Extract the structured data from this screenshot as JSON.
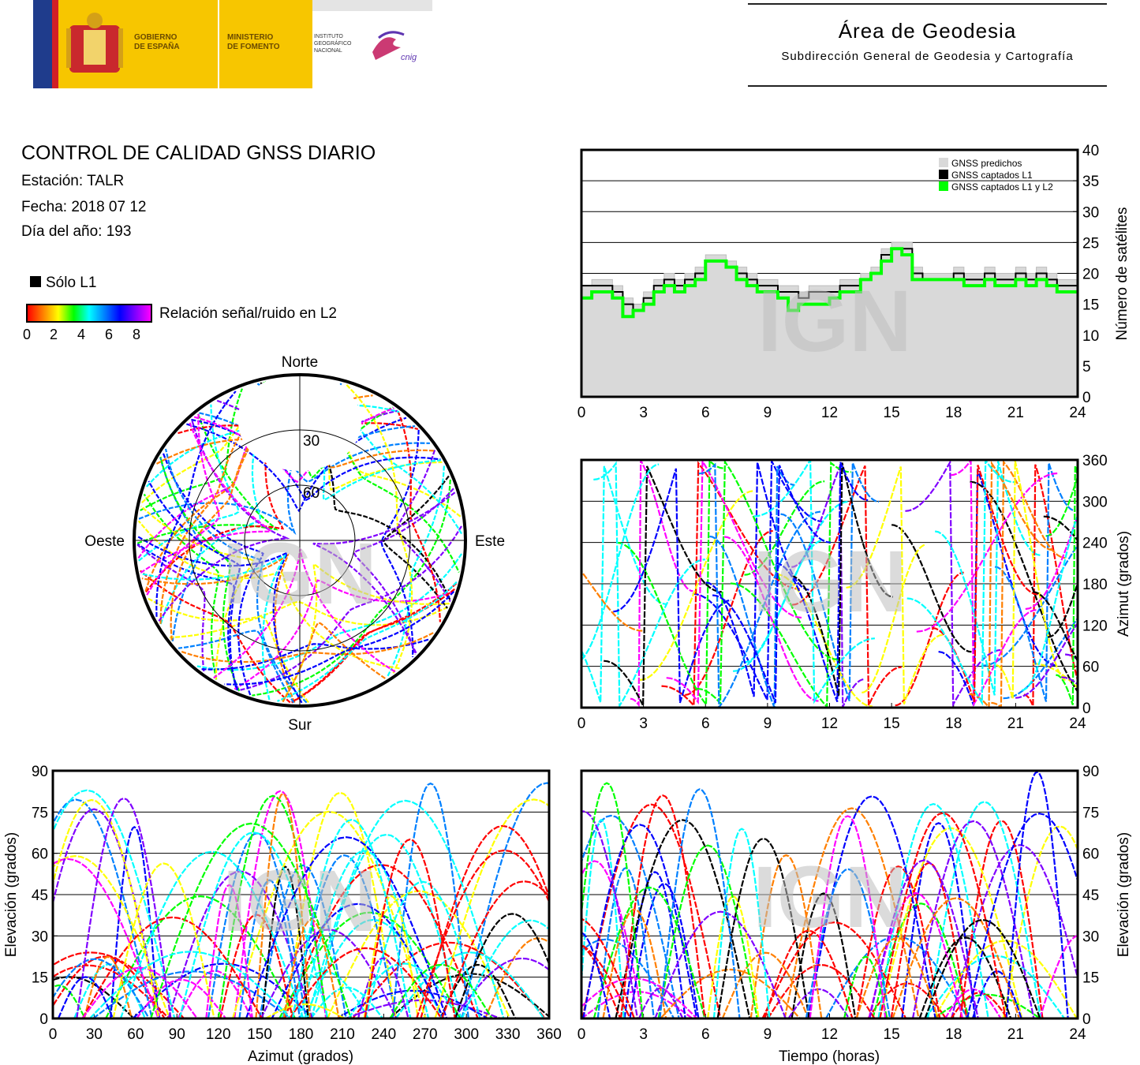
{
  "header": {
    "gov_line1": "GOBIERNO",
    "gov_line2": "DE ESPAÑA",
    "min_line1": "MINISTERIO",
    "min_line2": "DE FOMENTO",
    "ign_line1": "INSTITUTO",
    "ign_line2": "GEOGRÁFICO",
    "ign_line3": "NACIONAL",
    "cnig_logo": "cnig",
    "area_title": "Área de Geodesia",
    "area_subtitle": "Subdirección General de Geodesia y Cartografía"
  },
  "info": {
    "title": "CONTROL DE CALIDAD GNSS DIARIO",
    "station": "Estación: TALR",
    "date": "Fecha: 2018 07 12",
    "doy": "Día del año: 193",
    "legend_l1": "Sólo L1",
    "legend_snr": "Relación señal/ruido en L2",
    "colorbar_ticks": [
      "0",
      "2",
      "4",
      "6",
      "8"
    ]
  },
  "watermark": "IGN",
  "colors": {
    "l1_only": "#000000",
    "predicted": "#d9d9d9",
    "captured_l1l2": "#00ff00",
    "snr_palette": [
      "#ff0000",
      "#ff7f00",
      "#ffff00",
      "#00ff00",
      "#00ffff",
      "#0080ff",
      "#0000ff",
      "#8000ff",
      "#ff00ff"
    ]
  },
  "chart_data": [
    {
      "id": "sat_count",
      "type": "line",
      "ylabel": "Número de satélites",
      "xlabel": "",
      "xlim": [
        0,
        24
      ],
      "ylim": [
        0,
        40
      ],
      "xticks": [
        "0",
        "3",
        "6",
        "9",
        "12",
        "15",
        "18",
        "21",
        "24"
      ],
      "yticks": [
        "0",
        "5",
        "10",
        "15",
        "20",
        "25",
        "30",
        "35",
        "40"
      ],
      "grid": "horizontal",
      "legend_position": "top-right",
      "series": [
        {
          "name": "GNSS predichos",
          "x": [
            0,
            0.5,
            1,
            1.5,
            2,
            2.5,
            3,
            3.5,
            4,
            4.5,
            5,
            5.5,
            6,
            6.5,
            7,
            7.5,
            8,
            8.5,
            9,
            9.5,
            10,
            10.5,
            11,
            11.5,
            12,
            12.5,
            13,
            13.5,
            14,
            14.5,
            15,
            15.5,
            16,
            16.5,
            17,
            17.5,
            18,
            18.5,
            19,
            19.5,
            20,
            20.5,
            21,
            21.5,
            22,
            22.5,
            23,
            23.5,
            24
          ],
          "y": [
            18,
            19,
            19,
            18,
            16,
            15,
            17,
            19,
            20,
            19,
            20,
            21,
            23,
            23,
            22,
            21,
            20,
            19,
            19,
            18,
            18,
            17,
            18,
            18,
            18,
            19,
            19,
            20,
            21,
            24,
            25,
            25,
            21,
            20,
            20,
            20,
            21,
            20,
            20,
            21,
            20,
            20,
            21,
            20,
            21,
            20,
            19,
            19,
            20
          ]
        },
        {
          "name": "GNSS captados L1",
          "x": [
            0,
            0.5,
            1,
            1.5,
            2,
            2.5,
            3,
            3.5,
            4,
            4.5,
            5,
            5.5,
            6,
            6.5,
            7,
            7.5,
            8,
            8.5,
            9,
            9.5,
            10,
            10.5,
            11,
            11.5,
            12,
            12.5,
            13,
            13.5,
            14,
            14.5,
            15,
            15.5,
            16,
            16.5,
            17,
            17.5,
            18,
            18.5,
            19,
            19.5,
            20,
            20.5,
            21,
            21.5,
            22,
            22.5,
            23,
            23.5,
            24
          ],
          "y": [
            18,
            18,
            18,
            17,
            15,
            14,
            16,
            18,
            19,
            18,
            19,
            20,
            22,
            22,
            21,
            20,
            19,
            18,
            18,
            17,
            17,
            16,
            17,
            17,
            17,
            18,
            18,
            19,
            20,
            23,
            24,
            24,
            20,
            19,
            19,
            19,
            20,
            19,
            19,
            20,
            19,
            19,
            20,
            19,
            20,
            19,
            18,
            18,
            19
          ]
        },
        {
          "name": "GNSS captados L1 y L2",
          "x": [
            0,
            0.5,
            1,
            1.5,
            2,
            2.5,
            3,
            3.5,
            4,
            4.5,
            5,
            5.5,
            6,
            6.5,
            7,
            7.5,
            8,
            8.5,
            9,
            9.5,
            10,
            10.5,
            11,
            11.5,
            12,
            12.5,
            13,
            13.5,
            14,
            14.5,
            15,
            15.5,
            16,
            16.5,
            17,
            17.5,
            18,
            18.5,
            19,
            19.5,
            20,
            20.5,
            21,
            21.5,
            22,
            22.5,
            23,
            23.5,
            24
          ],
          "y": [
            16,
            17,
            17,
            16,
            13,
            14,
            15,
            17,
            18,
            17,
            18,
            19,
            22,
            22,
            21,
            19,
            18,
            17,
            17,
            16,
            14,
            15,
            15,
            15,
            16,
            17,
            17,
            19,
            20,
            22,
            24,
            23,
            19,
            19,
            19,
            19,
            19,
            18,
            18,
            19,
            18,
            18,
            19,
            18,
            19,
            18,
            17,
            17,
            17
          ]
        }
      ]
    },
    {
      "id": "skyplot",
      "type": "scatter",
      "xlabel": "",
      "ylabel": "",
      "cardinal_labels": {
        "n": "Norte",
        "s": "Sur",
        "w": "Oeste",
        "e": "Este"
      },
      "ring_labels": [
        "30",
        "60"
      ],
      "note": "polar azimuth/elevation satellite tracks, colored by L2 SNR"
    },
    {
      "id": "azimuth_time",
      "type": "scatter",
      "ylabel": "Azimut (grados)",
      "xlabel": "",
      "xlim": [
        0,
        24
      ],
      "ylim": [
        0,
        360
      ],
      "xticks": [
        "0",
        "3",
        "6",
        "9",
        "12",
        "15",
        "18",
        "21",
        "24"
      ],
      "yticks": [
        "0",
        "60",
        "120",
        "180",
        "240",
        "300",
        "360"
      ],
      "grid": "horizontal"
    },
    {
      "id": "elev_azimuth",
      "type": "scatter",
      "ylabel": "Elevación (grados)",
      "xlabel": "Azimut (grados)",
      "xlim": [
        0,
        360
      ],
      "ylim": [
        0,
        90
      ],
      "xticks": [
        "0",
        "30",
        "60",
        "90",
        "120",
        "150",
        "180",
        "210",
        "240",
        "270",
        "300",
        "330",
        "360"
      ],
      "yticks": [
        "0",
        "15",
        "30",
        "45",
        "60",
        "75",
        "90"
      ],
      "grid": "horizontal"
    },
    {
      "id": "elev_time",
      "type": "scatter",
      "ylabel": "Elevación (grados)",
      "xlabel": "Tiempo (horas)",
      "xlim": [
        0,
        24
      ],
      "ylim": [
        0,
        90
      ],
      "xticks": [
        "0",
        "3",
        "6",
        "9",
        "12",
        "15",
        "18",
        "21",
        "24"
      ],
      "yticks": [
        "0",
        "15",
        "30",
        "45",
        "60",
        "75",
        "90"
      ],
      "grid": "horizontal"
    }
  ]
}
